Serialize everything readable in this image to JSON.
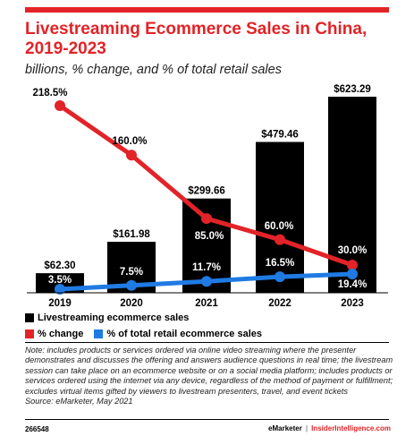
{
  "header": {
    "title": "Livestreaming Ecommerce Sales in China, 2019-2023",
    "subtitle": "billions, % change, and % of total retail sales"
  },
  "colors": {
    "accent": "#e22327",
    "bars": "#000000",
    "change": "#e22327",
    "share": "#1f7be3"
  },
  "chart_data": {
    "type": "bar",
    "title": "Livestreaming Ecommerce Sales in China, 2019-2023",
    "subtitle": "billions, % change, and % of total retail sales",
    "categories": [
      "2019",
      "2020",
      "2021",
      "2022",
      "2023"
    ],
    "grid": false,
    "legend_placement": "bottom",
    "series": [
      {
        "name": "Livestreaming ecommerce sales",
        "type": "bar",
        "values": [
          62.3,
          161.98,
          299.66,
          479.46,
          623.29
        ],
        "labels": [
          "$62.30",
          "$161.98",
          "$299.66",
          "$479.46",
          "$623.29"
        ],
        "ylim": [
          0,
          623.29
        ]
      },
      {
        "name": "% change",
        "type": "line",
        "values": [
          218.5,
          160.0,
          85.0,
          60.0,
          30.0
        ],
        "labels": [
          "218.5%",
          "160.0%",
          "85.0%",
          "60.0%",
          "30.0%"
        ]
      },
      {
        "name": "% of total retail ecommerce sales",
        "type": "line",
        "values": [
          3.5,
          7.5,
          11.7,
          16.5,
          19.4
        ],
        "labels": [
          "3.5%",
          "7.5%",
          "11.7%",
          "16.5%",
          "19.4%"
        ]
      }
    ]
  },
  "note": "Note: includes products or services ordered via online video streaming where the presenter demonstrates and discusses the offering and answers audience questions in real time; the livestream session can take place on an ecommerce website or on a social media platform; includes products or services ordered using the internet via any device, regardless of the method of payment or fulfillment; excludes virtual items gifted by viewers to livestream presenters, travel, and event tickets",
  "source": "Source: eMarketer, May 2021",
  "footer": {
    "id": "266548",
    "brand1": "eMarketer",
    "separator": "|",
    "brand2": "InsiderIntelligence.com"
  }
}
